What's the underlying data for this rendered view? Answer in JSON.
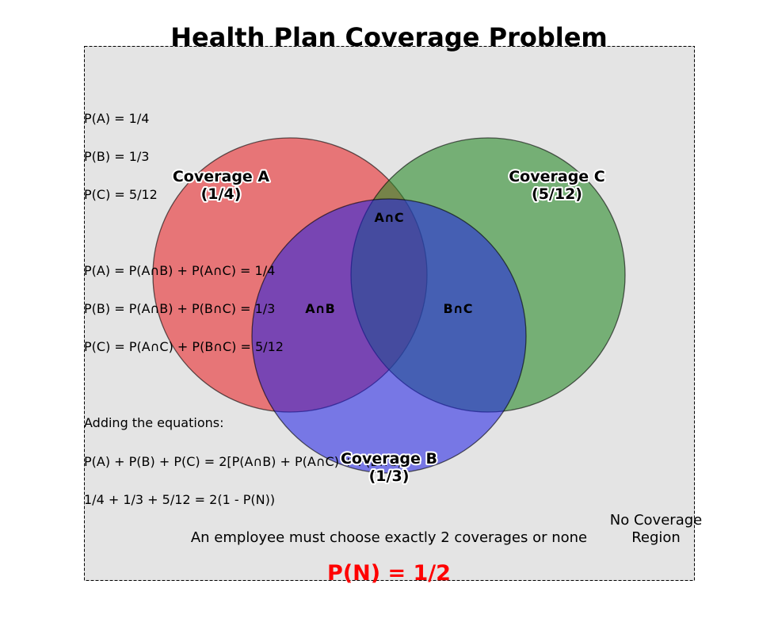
{
  "title": "Health Plan Coverage Problem",
  "colors": {
    "background": "#e4e4e4",
    "coverage_a": "#e8393c",
    "coverage_b": "#1d1ee6",
    "coverage_c": "#2c8c2c",
    "result": "#ff0000"
  },
  "given": [
    "P(A) = 1/4",
    "P(B) = 1/3",
    "P(C) = 5/12"
  ],
  "relations": [
    "P(A) = P(A∩B) + P(A∩C) = 1/4",
    "P(B) = P(A∩B) + P(B∩C) = 1/3",
    "P(C) = P(A∩C) + P(B∩C) = 5/12"
  ],
  "derivation": [
    "Adding the equations:",
    "P(A) + P(B) + P(C) = 2[P(A∩B) + P(A∩C) + P(B∩C)]",
    "1/4 + 1/3 + 5/12 = 2(1 - P(N))"
  ],
  "circles": {
    "a": {
      "name": "Coverage A",
      "prob": "(1/4)"
    },
    "b": {
      "name": "Coverage B",
      "prob": "(1/3)"
    },
    "c": {
      "name": "Coverage C",
      "prob": "(5/12)"
    }
  },
  "regions": {
    "ab": "A∩B",
    "ac": "A∩C",
    "bc": "B∩C"
  },
  "no_coverage": {
    "line1": "No Coverage",
    "line2": "Region"
  },
  "constraint_note": "An employee must choose exactly 2 coverages or none",
  "result": "P(N) = 1/2"
}
